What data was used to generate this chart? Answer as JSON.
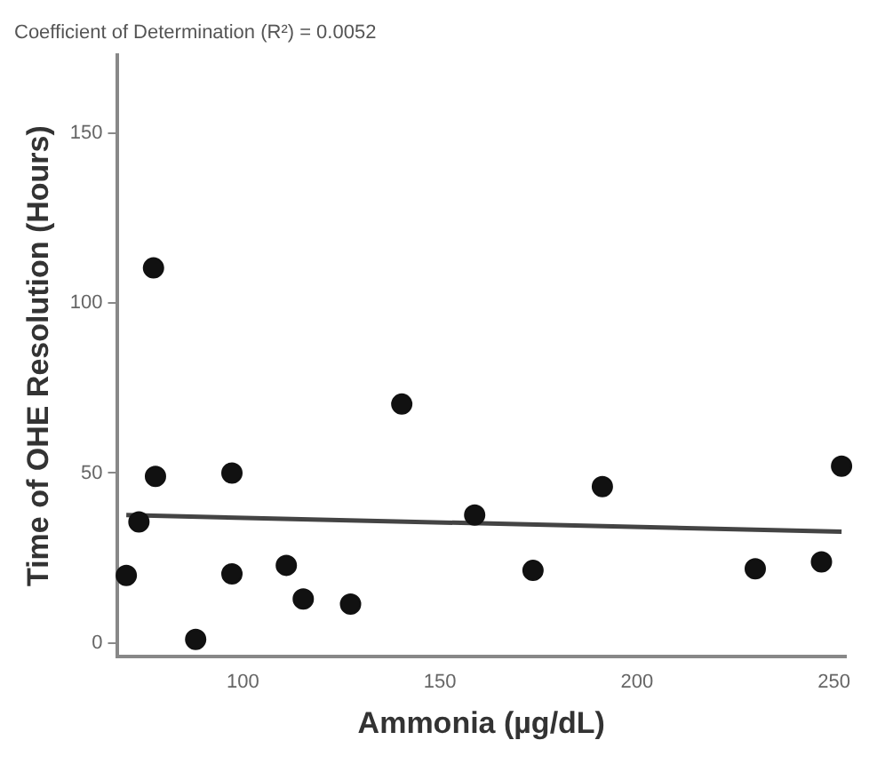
{
  "chart_data": {
    "type": "scatter",
    "title": "Coefficient of Determination (R²) = 0.0052",
    "xlabel": "Ammonia (µg/dL)",
    "ylabel": "Time of OHE Resolution (Hours)",
    "x": [
      70.4,
      73.6,
      77.3,
      77.8,
      88,
      97.2,
      97.2,
      111,
      115.3,
      127.3,
      140.3,
      158.8,
      173.6,
      191.2,
      230,
      246.8,
      251.9
    ],
    "series": [
      {
        "type": "scatter",
        "marker": "circle",
        "color": "#111111",
        "values": [
          19.8,
          35.6,
          110.4,
          49,
          1,
          50,
          20.3,
          22.8,
          12.9,
          11.4,
          70.3,
          37.6,
          21.3,
          46,
          21.8,
          23.8,
          52
        ]
      },
      {
        "type": "line",
        "marker": "none",
        "color": "#444444",
        "x": [
          70.4,
          251.9
        ],
        "values": [
          37.6,
          32.7
        ]
      }
    ],
    "xlim": [
      68,
      253
    ],
    "ylim": [
      -4,
      173
    ],
    "xticks": [
      100,
      150,
      200,
      250
    ],
    "yticks": [
      0,
      50,
      100,
      150
    ],
    "grid": false,
    "legend": false
  }
}
